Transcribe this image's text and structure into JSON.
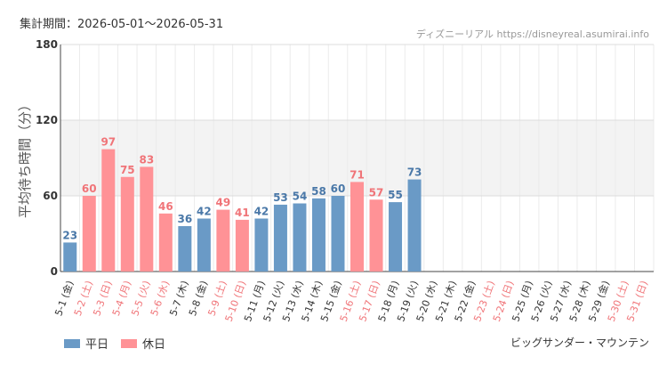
{
  "period_label": "集計期間：2026-05-01〜2026-05-31",
  "site_credit": "ディズニーリアル https://disneyreal.asumirai.info",
  "attraction": "ビッグサンダー・マウンテン",
  "colors": {
    "weekday": "#6a9ac6",
    "holiday": "#ff9296",
    "weekday_text": "#4a78a8",
    "holiday_text": "#f07478",
    "band": "#f3f3f3"
  },
  "legend": [
    {
      "label": "平日",
      "kind": "weekday"
    },
    {
      "label": "休日",
      "kind": "holiday"
    }
  ],
  "chart_data": {
    "type": "bar",
    "ylabel": "平均待ち時間（分）",
    "ylim": [
      0,
      180
    ],
    "yticks": [
      0,
      60,
      120,
      180
    ],
    "band": [
      60,
      120
    ],
    "categories": [
      "5-1 (金)",
      "5-2 (土)",
      "5-3 (日)",
      "5-4 (月)",
      "5-5 (火)",
      "5-6 (水)",
      "5-7 (木)",
      "5-8 (金)",
      "5-9 (土)",
      "5-10 (日)",
      "5-11 (月)",
      "5-12 (火)",
      "5-13 (水)",
      "5-14 (木)",
      "5-15 (金)",
      "5-16 (土)",
      "5-17 (日)",
      "5-18 (月)",
      "5-19 (火)",
      "5-20 (水)",
      "5-21 (木)",
      "5-22 (金)",
      "5-23 (土)",
      "5-24 (日)",
      "5-25 (月)",
      "5-26 (火)",
      "5-27 (水)",
      "5-28 (木)",
      "5-29 (金)",
      "5-30 (土)",
      "5-31 (日)"
    ],
    "values": [
      23,
      60,
      97,
      75,
      83,
      46,
      36,
      42,
      49,
      41,
      42,
      53,
      54,
      58,
      60,
      71,
      57,
      55,
      73,
      null,
      null,
      null,
      null,
      null,
      null,
      null,
      null,
      null,
      null,
      null,
      null
    ],
    "day_type": [
      "weekday",
      "holiday",
      "holiday",
      "holiday",
      "holiday",
      "holiday",
      "weekday",
      "weekday",
      "holiday",
      "holiday",
      "weekday",
      "weekday",
      "weekday",
      "weekday",
      "weekday",
      "holiday",
      "holiday",
      "weekday",
      "weekday",
      "weekday",
      "weekday",
      "weekday",
      "holiday",
      "holiday",
      "weekday",
      "weekday",
      "weekday",
      "weekday",
      "weekday",
      "holiday",
      "holiday"
    ]
  }
}
